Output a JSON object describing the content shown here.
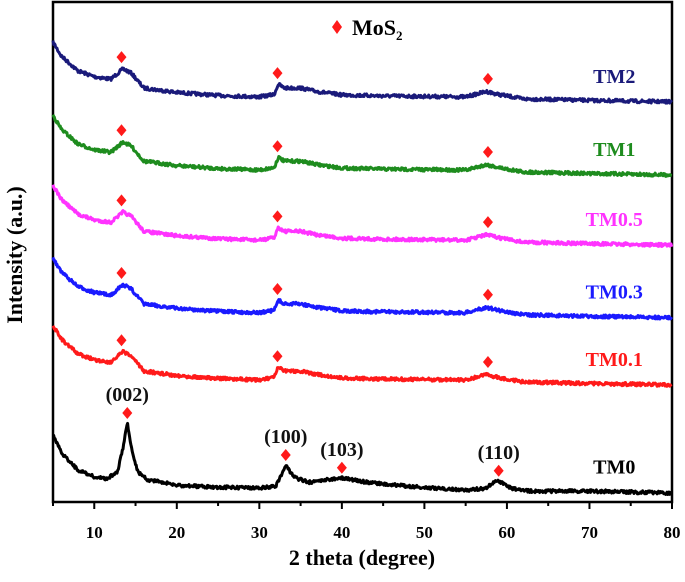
{
  "chart_data": {
    "type": "line",
    "title": "",
    "xlabel": "2 theta (degree)",
    "ylabel": "Intensity (a.u.)",
    "xlim": [
      5,
      80
    ],
    "ylim": [
      0,
      100
    ],
    "xticks": [
      10,
      20,
      30,
      40,
      50,
      60,
      70,
      80
    ],
    "grid": false,
    "legend": {
      "placement": "top-center",
      "entries": [
        {
          "symbol": "diamond",
          "color": "#ff1a1a",
          "label": "MoS",
          "subscript": "2"
        }
      ]
    },
    "marker_color": "#ff1a1a",
    "series": [
      {
        "name": "TM2",
        "color": "#1a1a7a",
        "x": [
          5,
          6,
          8,
          10,
          12,
          13.5,
          14.5,
          16,
          20,
          25,
          30,
          31.8,
          32.3,
          33,
          35,
          37,
          40,
          45,
          55,
          57.5,
          59,
          62,
          70,
          80
        ],
        "y": [
          93.1,
          90.3,
          87.3,
          86.1,
          85.6,
          87.7,
          86.8,
          83.8,
          82.9,
          82.3,
          82.0,
          82.5,
          84.6,
          83.8,
          83.8,
          83.1,
          82.4,
          82.2,
          82.0,
          83.1,
          82.5,
          81.6,
          81.3,
          81.0
        ],
        "markers": [
          13.3,
          32.2,
          57.7
        ]
      },
      {
        "name": "TM1",
        "color": "#1e8c1e",
        "x": [
          5,
          6,
          8,
          10,
          12,
          13.5,
          14.5,
          16,
          20,
          25,
          30,
          31.8,
          32.3,
          33,
          35,
          37,
          40,
          45,
          55,
          57.5,
          59,
          62,
          70,
          80
        ],
        "y": [
          78.3,
          75.5,
          72.5,
          71.3,
          70.8,
          72.9,
          72.0,
          69.0,
          68.1,
          67.5,
          67.2,
          67.7,
          69.8,
          69.0,
          69.0,
          68.3,
          67.6,
          67.4,
          67.2,
          68.3,
          67.7,
          66.8,
          66.5,
          66.2
        ],
        "markers": [
          13.3,
          32.2,
          57.7
        ]
      },
      {
        "name": "TM0.5",
        "color": "#ff33ff",
        "x": [
          5,
          6,
          8,
          10,
          12,
          13.5,
          14.5,
          16,
          20,
          25,
          30,
          31.8,
          32.3,
          33,
          35,
          37,
          40,
          45,
          55,
          57.5,
          59,
          62,
          70,
          80
        ],
        "y": [
          64.1,
          61.3,
          58.3,
          57.1,
          56.6,
          58.7,
          57.8,
          54.8,
          53.9,
          53.3,
          53.0,
          53.5,
          55.6,
          54.8,
          54.8,
          54.1,
          53.4,
          53.2,
          53.0,
          54.1,
          53.5,
          52.6,
          52.3,
          52.0
        ],
        "markers": [
          13.3,
          32.2,
          57.7
        ]
      },
      {
        "name": "TM0.3",
        "color": "#1a1aff",
        "x": [
          5,
          6,
          8,
          10,
          12,
          13.5,
          14.5,
          16,
          20,
          25,
          30,
          31.8,
          32.3,
          33,
          35,
          37,
          40,
          45,
          55,
          57.5,
          59,
          62,
          70,
          80
        ],
        "y": [
          49.4,
          46.6,
          43.6,
          42.4,
          41.9,
          44.0,
          43.1,
          40.1,
          39.2,
          38.6,
          38.3,
          38.8,
          40.9,
          40.1,
          40.1,
          39.4,
          38.7,
          38.5,
          38.3,
          39.4,
          38.8,
          37.9,
          37.6,
          37.3
        ],
        "markers": [
          13.3,
          32.2,
          57.7
        ]
      },
      {
        "name": "TM0.1",
        "color": "#ff1a1a",
        "x": [
          5,
          6,
          8,
          10,
          12,
          13.5,
          14.5,
          16,
          20,
          25,
          30,
          31.8,
          32.3,
          33,
          35,
          37,
          40,
          45,
          55,
          57.5,
          59,
          62,
          70,
          80
        ],
        "y": [
          35.8,
          33,
          30,
          28.8,
          28.3,
          30.4,
          29.5,
          26.5,
          25.6,
          25,
          24.7,
          25.2,
          27.3,
          26.5,
          26.5,
          25.8,
          25.1,
          24.9,
          24.7,
          25.8,
          25.2,
          24.3,
          24,
          23.7
        ],
        "markers": [
          13.3,
          32.2,
          57.7
        ]
      },
      {
        "name": "TM0",
        "color": "#000000",
        "x": [
          5,
          6,
          8,
          10,
          11.5,
          12.8,
          13.5,
          14,
          14.6,
          15.3,
          16.5,
          20,
          25,
          30,
          32,
          33.2,
          34.2,
          36,
          40,
          43,
          48,
          55,
          57.5,
          58.8,
          60.5,
          63,
          70,
          80
        ],
        "y": [
          13.6,
          10,
          6.5,
          5.1,
          4.7,
          6,
          11,
          16,
          10,
          6,
          4.5,
          3.4,
          3.0,
          2.8,
          3.2,
          7.5,
          5,
          4,
          4.9,
          4,
          3.2,
          2.4,
          2.8,
          4.5,
          2.8,
          2.2,
          2.2,
          1.8
        ],
        "markers": [
          14,
          33.2,
          40,
          59
        ],
        "peak_labels": [
          "(002)",
          "(100)",
          "(103)",
          "(110)"
        ]
      }
    ]
  }
}
